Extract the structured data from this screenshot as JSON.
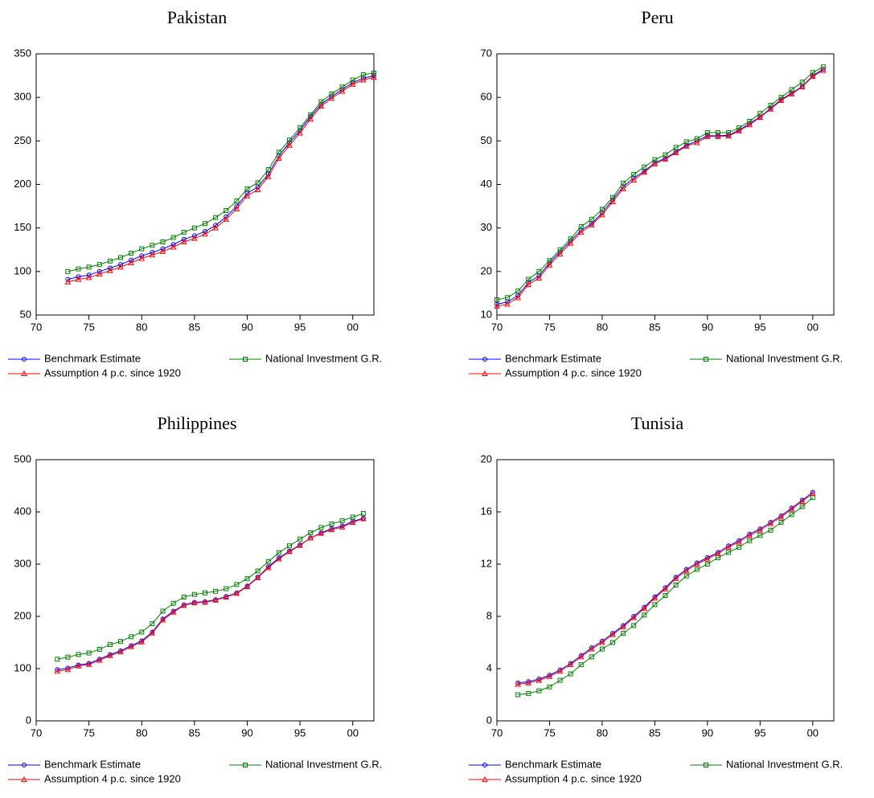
{
  "chart_data": [
    {
      "type": "line",
      "title": "Pakistan",
      "legend": "bottom",
      "x": [
        1973,
        1974,
        1975,
        1976,
        1977,
        1978,
        1979,
        1980,
        1981,
        1982,
        1983,
        1984,
        1985,
        1986,
        1987,
        1988,
        1989,
        1990,
        1991,
        1992,
        1993,
        1994,
        1995,
        1996,
        1997,
        1998,
        1999,
        2000,
        2001,
        2002
      ],
      "xlim": [
        1970,
        2002
      ],
      "ylim": [
        50,
        350
      ],
      "yticks": [
        50,
        100,
        150,
        200,
        250,
        300,
        350
      ],
      "xticks": [
        {
          "value": 1970,
          "label": "70"
        },
        {
          "value": 1975,
          "label": "75"
        },
        {
          "value": 1980,
          "label": "80"
        },
        {
          "value": 1985,
          "label": "85"
        },
        {
          "value": 1990,
          "label": "90"
        },
        {
          "value": 1995,
          "label": "95"
        },
        {
          "value": 2000,
          "label": "00"
        }
      ],
      "series": [
        {
          "name": "Benchmark Estimate",
          "color": "#0000ff",
          "marker": "circle",
          "values": [
            91,
            94,
            96,
            100,
            104,
            108,
            113,
            118,
            122,
            126,
            131,
            137,
            141,
            146,
            153,
            163,
            175,
            190,
            197,
            212,
            233,
            248,
            262,
            278,
            292,
            301,
            309,
            317,
            322,
            325
          ]
        },
        {
          "name": "National Investment G.R.",
          "color": "#008000",
          "marker": "square",
          "values": [
            100,
            103,
            105,
            108,
            112,
            116,
            121,
            126,
            130,
            134,
            139,
            145,
            150,
            155,
            162,
            170,
            181,
            195,
            202,
            217,
            237,
            251,
            265,
            280,
            295,
            304,
            312,
            320,
            326,
            328
          ]
        },
        {
          "name": "Assumption 4 p.c. since 1920",
          "color": "#ff0000",
          "marker": "triangle",
          "values": [
            88,
            91,
            93,
            97,
            101,
            105,
            110,
            115,
            119,
            123,
            128,
            134,
            138,
            143,
            150,
            160,
            172,
            187,
            194,
            209,
            230,
            245,
            259,
            275,
            290,
            299,
            307,
            315,
            320,
            323
          ]
        }
      ]
    },
    {
      "type": "line",
      "title": "Peru",
      "legend": "bottom",
      "x": [
        1970,
        1971,
        1972,
        1973,
        1974,
        1975,
        1976,
        1977,
        1978,
        1979,
        1980,
        1981,
        1982,
        1983,
        1984,
        1985,
        1986,
        1987,
        1988,
        1989,
        1990,
        1991,
        1992,
        1993,
        1994,
        1995,
        1996,
        1997,
        1998,
        1999,
        2000,
        2001
      ],
      "xlim": [
        1970,
        2002
      ],
      "ylim": [
        10,
        70
      ],
      "yticks": [
        10,
        20,
        30,
        40,
        50,
        60,
        70
      ],
      "xticks": [
        {
          "value": 1970,
          "label": "70"
        },
        {
          "value": 1975,
          "label": "75"
        },
        {
          "value": 1980,
          "label": "80"
        },
        {
          "value": 1985,
          "label": "85"
        },
        {
          "value": 1990,
          "label": "90"
        },
        {
          "value": 1995,
          "label": "95"
        },
        {
          "value": 2000,
          "label": "00"
        }
      ],
      "series": [
        {
          "name": "Benchmark Estimate",
          "color": "#0000ff",
          "marker": "circle",
          "values": [
            12.5,
            13,
            14.5,
            17.5,
            19,
            22,
            24.5,
            27,
            29.5,
            31,
            33.5,
            36.5,
            39.5,
            41.5,
            43,
            45,
            46,
            47.5,
            49,
            50,
            51.2,
            51.2,
            51.3,
            52.5,
            54,
            55.5,
            57.5,
            59.5,
            61,
            62.5,
            65,
            66.5
          ]
        },
        {
          "name": "National Investment G.R.",
          "color": "#008000",
          "marker": "square",
          "values": [
            13.5,
            14,
            15.5,
            18.2,
            20,
            22.5,
            25,
            27.5,
            30.3,
            32,
            34.3,
            37,
            40.3,
            42.3,
            44,
            45.7,
            46.8,
            48.5,
            49.8,
            50.5,
            51.9,
            51.9,
            51.9,
            53,
            54.5,
            56.3,
            58.2,
            60,
            61.8,
            63.5,
            65.7,
            67
          ]
        },
        {
          "name": "Assumption 4 p.c. since 1920",
          "color": "#ff0000",
          "marker": "triangle",
          "values": [
            12,
            12.5,
            14,
            17,
            18.5,
            21.5,
            24,
            26.5,
            29,
            30.7,
            33,
            36,
            39,
            41,
            42.8,
            44.7,
            45.8,
            47.3,
            48.8,
            49.6,
            51,
            51,
            51.1,
            52.3,
            53.7,
            55.4,
            57.3,
            59.3,
            60.8,
            62.4,
            64.8,
            66.2
          ]
        }
      ]
    },
    {
      "type": "line",
      "title": "Philippines",
      "legend": "bottom",
      "x": [
        1972,
        1973,
        1974,
        1975,
        1976,
        1977,
        1978,
        1979,
        1980,
        1981,
        1982,
        1983,
        1984,
        1985,
        1986,
        1987,
        1988,
        1989,
        1990,
        1991,
        1992,
        1993,
        1994,
        1995,
        1996,
        1997,
        1998,
        1999,
        2000,
        2001
      ],
      "xlim": [
        1970,
        2002
      ],
      "ylim": [
        0,
        500
      ],
      "yticks": [
        0,
        100,
        200,
        300,
        400,
        500
      ],
      "xticks": [
        {
          "value": 1970,
          "label": "70"
        },
        {
          "value": 1975,
          "label": "75"
        },
        {
          "value": 1980,
          "label": "80"
        },
        {
          "value": 1985,
          "label": "85"
        },
        {
          "value": 1990,
          "label": "90"
        },
        {
          "value": 1995,
          "label": "95"
        },
        {
          "value": 2000,
          "label": "00"
        }
      ],
      "series": [
        {
          "name": "Benchmark Estimate",
          "color": "#0000ff",
          "marker": "circle",
          "values": [
            98,
            101,
            107,
            110,
            118,
            127,
            134,
            144,
            153,
            170,
            195,
            210,
            222,
            227,
            228,
            232,
            238,
            245,
            258,
            275,
            295,
            312,
            325,
            337,
            350,
            360,
            368,
            373,
            382,
            388
          ]
        },
        {
          "name": "National Investment G.R.",
          "color": "#008000",
          "marker": "square",
          "values": [
            118,
            122,
            127,
            130,
            137,
            146,
            152,
            161,
            170,
            186,
            210,
            225,
            237,
            242,
            245,
            248,
            253,
            261,
            272,
            287,
            305,
            322,
            335,
            348,
            360,
            370,
            377,
            383,
            390,
            397
          ]
        },
        {
          "name": "Assumption 4 p.c. since 1920",
          "color": "#ff0000",
          "marker": "triangle",
          "values": [
            95,
            98,
            105,
            108,
            116,
            125,
            132,
            142,
            151,
            168,
            193,
            208,
            221,
            226,
            227,
            231,
            237,
            244,
            257,
            274,
            293,
            310,
            324,
            336,
            350,
            359,
            366,
            371,
            380,
            387
          ]
        }
      ]
    },
    {
      "type": "line",
      "title": "Tunisia",
      "legend": "bottom",
      "x": [
        1972,
        1973,
        1974,
        1975,
        1976,
        1977,
        1978,
        1979,
        1980,
        1981,
        1982,
        1983,
        1984,
        1985,
        1986,
        1987,
        1988,
        1989,
        1990,
        1991,
        1992,
        1993,
        1994,
        1995,
        1996,
        1997,
        1998,
        1999,
        2000
      ],
      "xlim": [
        1970,
        2002
      ],
      "ylim": [
        0,
        20
      ],
      "yticks": [
        0,
        4,
        8,
        12,
        16,
        20
      ],
      "xticks": [
        {
          "value": 1970,
          "label": "70"
        },
        {
          "value": 1975,
          "label": "75"
        },
        {
          "value": 1980,
          "label": "80"
        },
        {
          "value": 1985,
          "label": "85"
        },
        {
          "value": 1990,
          "label": "90"
        },
        {
          "value": 1995,
          "label": "95"
        },
        {
          "value": 2000,
          "label": "00"
        }
      ],
      "series": [
        {
          "name": "Benchmark Estimate",
          "color": "#0000ff",
          "marker": "circle",
          "values": [
            2.9,
            3.0,
            3.2,
            3.5,
            3.9,
            4.4,
            5.0,
            5.6,
            6.1,
            6.7,
            7.3,
            8.0,
            8.7,
            9.5,
            10.2,
            11.0,
            11.6,
            12.1,
            12.5,
            12.9,
            13.4,
            13.8,
            14.3,
            14.7,
            15.2,
            15.7,
            16.3,
            16.9,
            17.5
          ]
        },
        {
          "name": "National Investment G.R.",
          "color": "#008000",
          "marker": "square",
          "values": [
            2.0,
            2.1,
            2.3,
            2.6,
            3.1,
            3.6,
            4.3,
            4.9,
            5.5,
            6.0,
            6.7,
            7.3,
            8.1,
            8.9,
            9.6,
            10.4,
            11.1,
            11.6,
            12.0,
            12.5,
            12.9,
            13.3,
            13.8,
            14.2,
            14.6,
            15.2,
            15.8,
            16.4,
            17.1
          ]
        },
        {
          "name": "Assumption 4 p.c. since 1920",
          "color": "#ff0000",
          "marker": "triangle",
          "values": [
            2.8,
            2.9,
            3.1,
            3.4,
            3.8,
            4.3,
            4.9,
            5.5,
            6.0,
            6.6,
            7.2,
            7.9,
            8.6,
            9.4,
            10.1,
            10.9,
            11.5,
            12.0,
            12.4,
            12.8,
            13.3,
            13.7,
            14.2,
            14.6,
            15.1,
            15.6,
            16.2,
            16.8,
            17.4
          ]
        }
      ]
    }
  ]
}
